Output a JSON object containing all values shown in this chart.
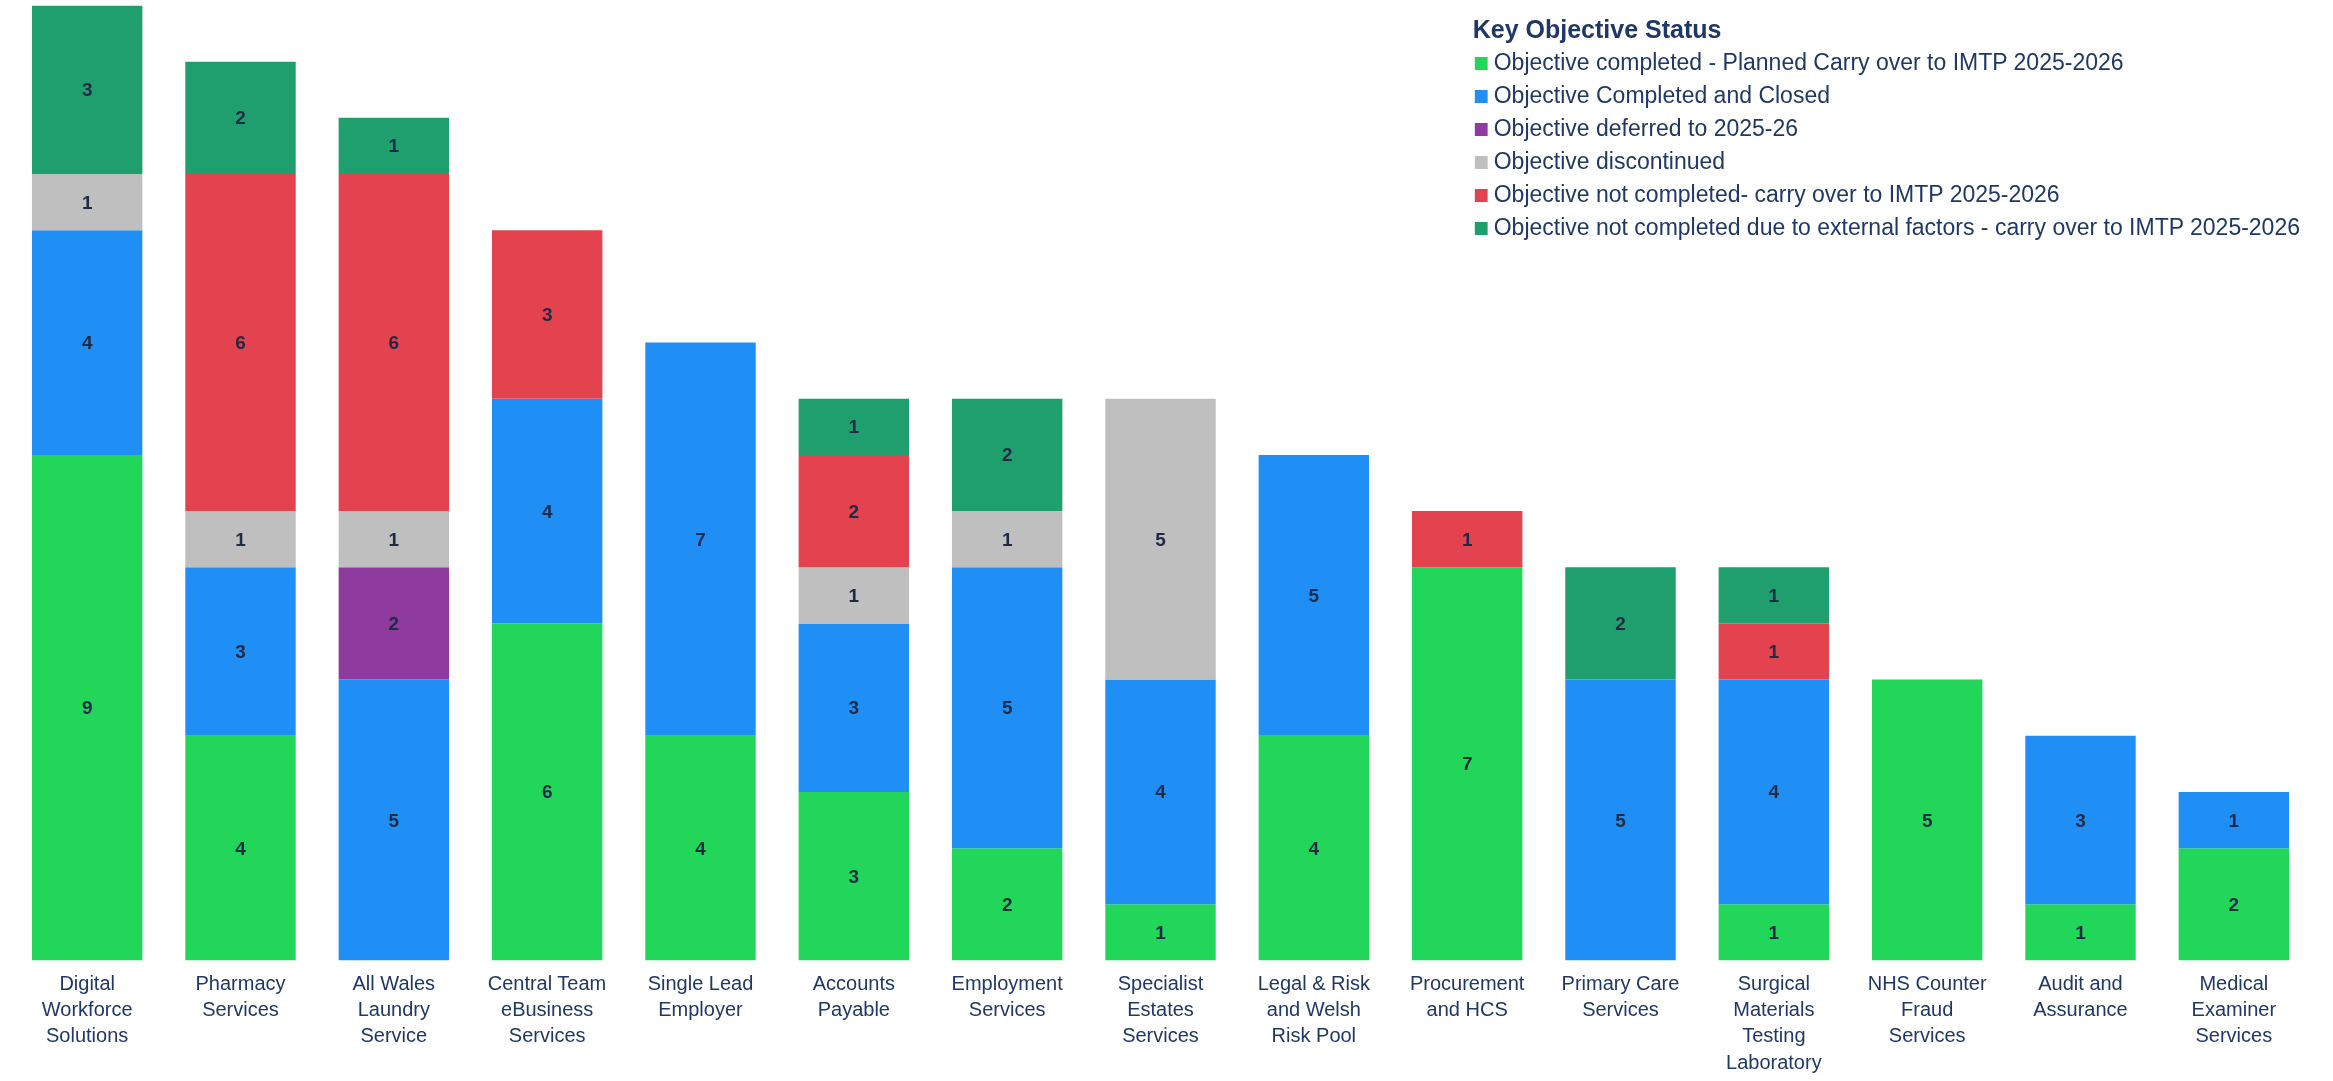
{
  "chart_data": {
    "type": "bar",
    "stacked": true,
    "data_labels": true,
    "legend": "top right",
    "legend_title": "Key Objective Status",
    "categories": [
      "Digital Workforce Solutions",
      "Pharmacy Services",
      "All Wales Laundry Service",
      "Central Team eBusiness Services",
      "Single Lead Employer",
      "Accounts Payable",
      "Employment Services",
      "Specialist Estates Services",
      "Legal & Risk and Welsh Risk Pool",
      "Procurement and HCS",
      "Primary Care Services",
      "Surgical Materials Testing Laboratory",
      "NHS Counter Fraud Services",
      "Audit and Assurance",
      "Medical Examiner Services"
    ],
    "series": [
      {
        "name": "Objective completed - Planned Carry over to IMTP 2025-2026",
        "color": "#22d65a",
        "values": [
          9,
          4,
          null,
          6,
          4,
          3,
          2,
          1,
          4,
          7,
          null,
          1,
          5,
          1,
          2
        ]
      },
      {
        "name": "Objective Completed and Closed",
        "color": "#1f8ff5",
        "values": [
          4,
          3,
          5,
          4,
          7,
          3,
          5,
          4,
          5,
          null,
          5,
          4,
          null,
          3,
          1
        ]
      },
      {
        "name": "Objective deferred to 2025-26",
        "color": "#8e3a9e",
        "values": [
          null,
          null,
          2,
          null,
          null,
          null,
          null,
          null,
          null,
          null,
          null,
          null,
          null,
          null,
          null
        ]
      },
      {
        "name": "Objective discontinued",
        "color": "#bfbfbf",
        "values": [
          1,
          1,
          1,
          null,
          null,
          1,
          1,
          5,
          null,
          null,
          null,
          null,
          null,
          null,
          null
        ]
      },
      {
        "name": "Objective not completed- carry over to IMTP 2025-2026",
        "color": "#e2434e",
        "values": [
          null,
          6,
          6,
          3,
          null,
          2,
          null,
          null,
          null,
          1,
          null,
          1,
          null,
          null,
          null
        ]
      },
      {
        "name": "Objective not completed due to external factors - carry over to IMTP 2025-2026",
        "color": "#1f9e6e",
        "values": [
          3,
          2,
          1,
          null,
          null,
          1,
          2,
          null,
          null,
          null,
          2,
          1,
          null,
          null,
          null
        ]
      }
    ]
  }
}
